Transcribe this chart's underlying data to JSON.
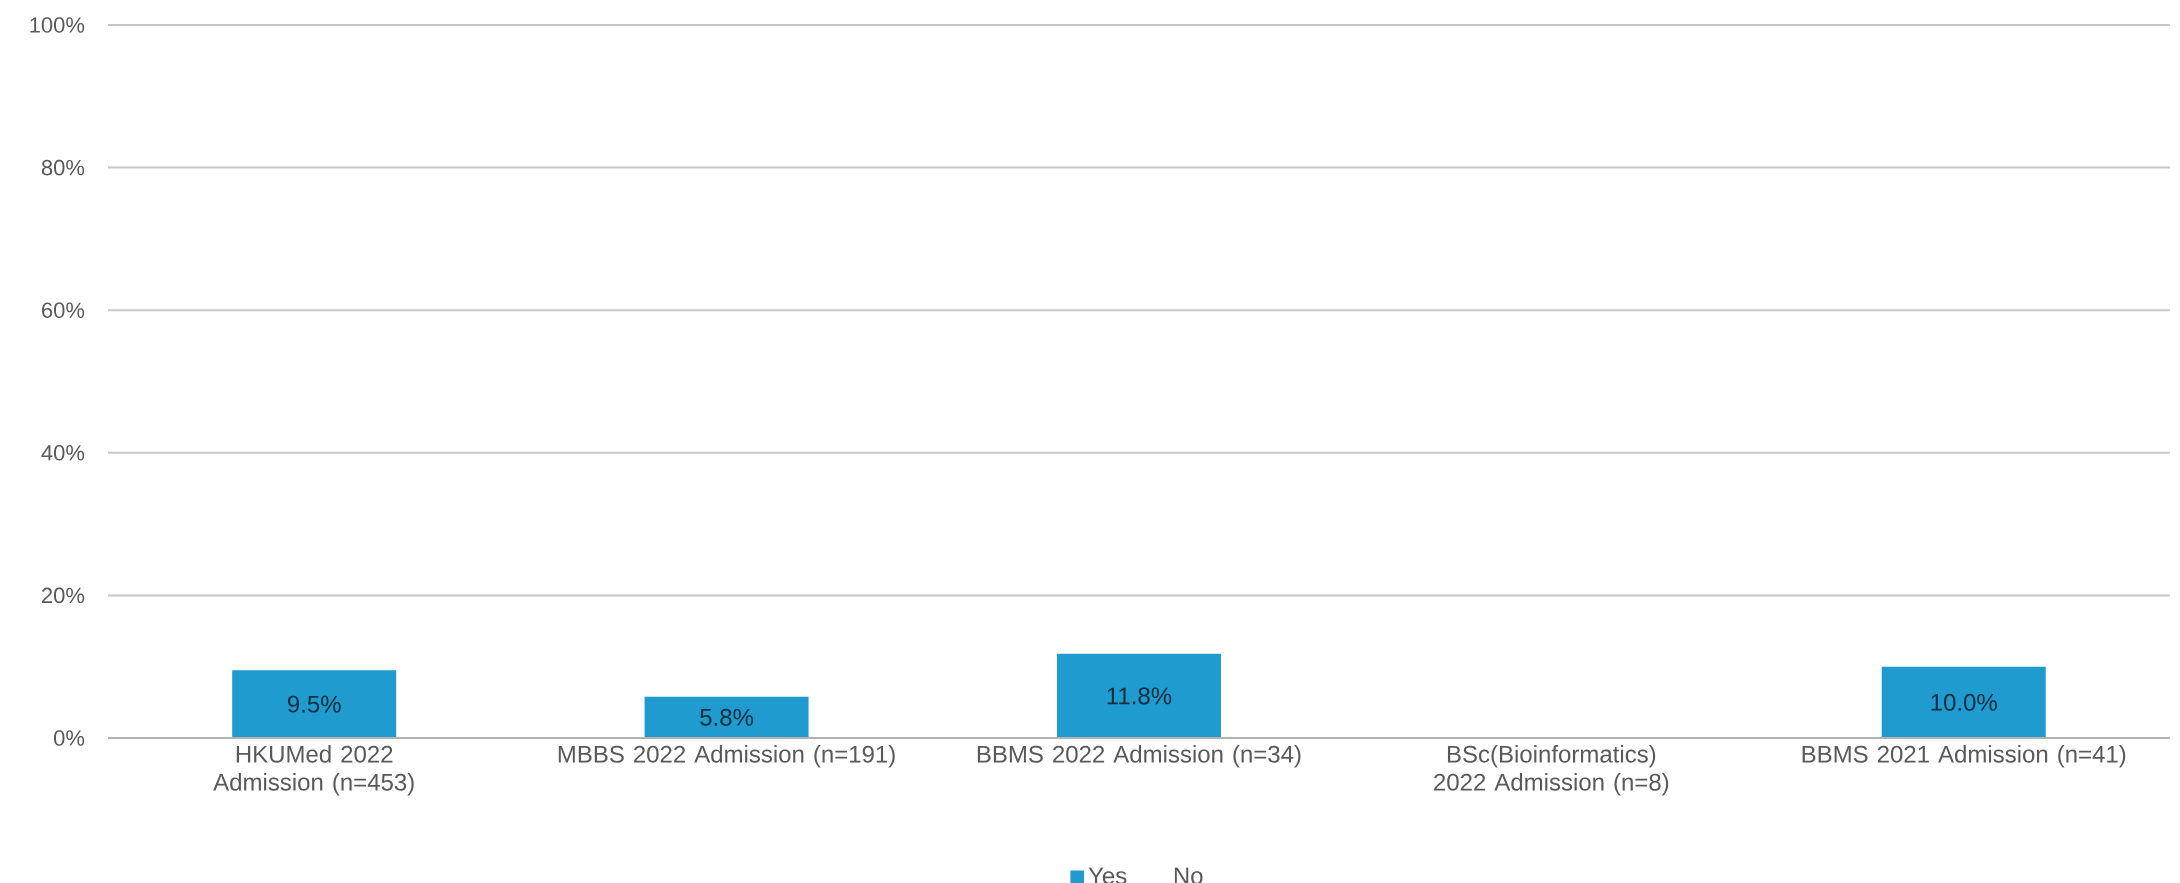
{
  "chart_data": {
    "type": "bar",
    "stacked": true,
    "categories": [
      "HKUMed 2022 Admission (n=453)",
      "MBBS 2022 Admission (n=191)",
      "BBMS 2022 Admission (n=34)",
      "BSc(Bioinformatics) 2022 Admission (n=8)",
      "BBMS 2021 Admission (n=41)"
    ],
    "series": [
      {
        "name": "Yes",
        "color": "#1f9bd0",
        "values": [
          9.5,
          5.8,
          11.8,
          0,
          10.0
        ],
        "value_labels": [
          "9.5%",
          "5.8%",
          "11.8%",
          null,
          "10.0%"
        ]
      },
      {
        "name": "No",
        "values": [
          null,
          null,
          null,
          null,
          null
        ]
      }
    ],
    "ylim": [
      0,
      100
    ],
    "yticks": [
      {
        "value": 0,
        "label": "0%"
      },
      {
        "value": 20,
        "label": "20%"
      },
      {
        "value": 40,
        "label": "40%"
      },
      {
        "value": 60,
        "label": "60%"
      },
      {
        "value": 80,
        "label": "80%"
      },
      {
        "value": 100,
        "label": "100%"
      }
    ],
    "grid": "y",
    "legend": "bottom"
  }
}
